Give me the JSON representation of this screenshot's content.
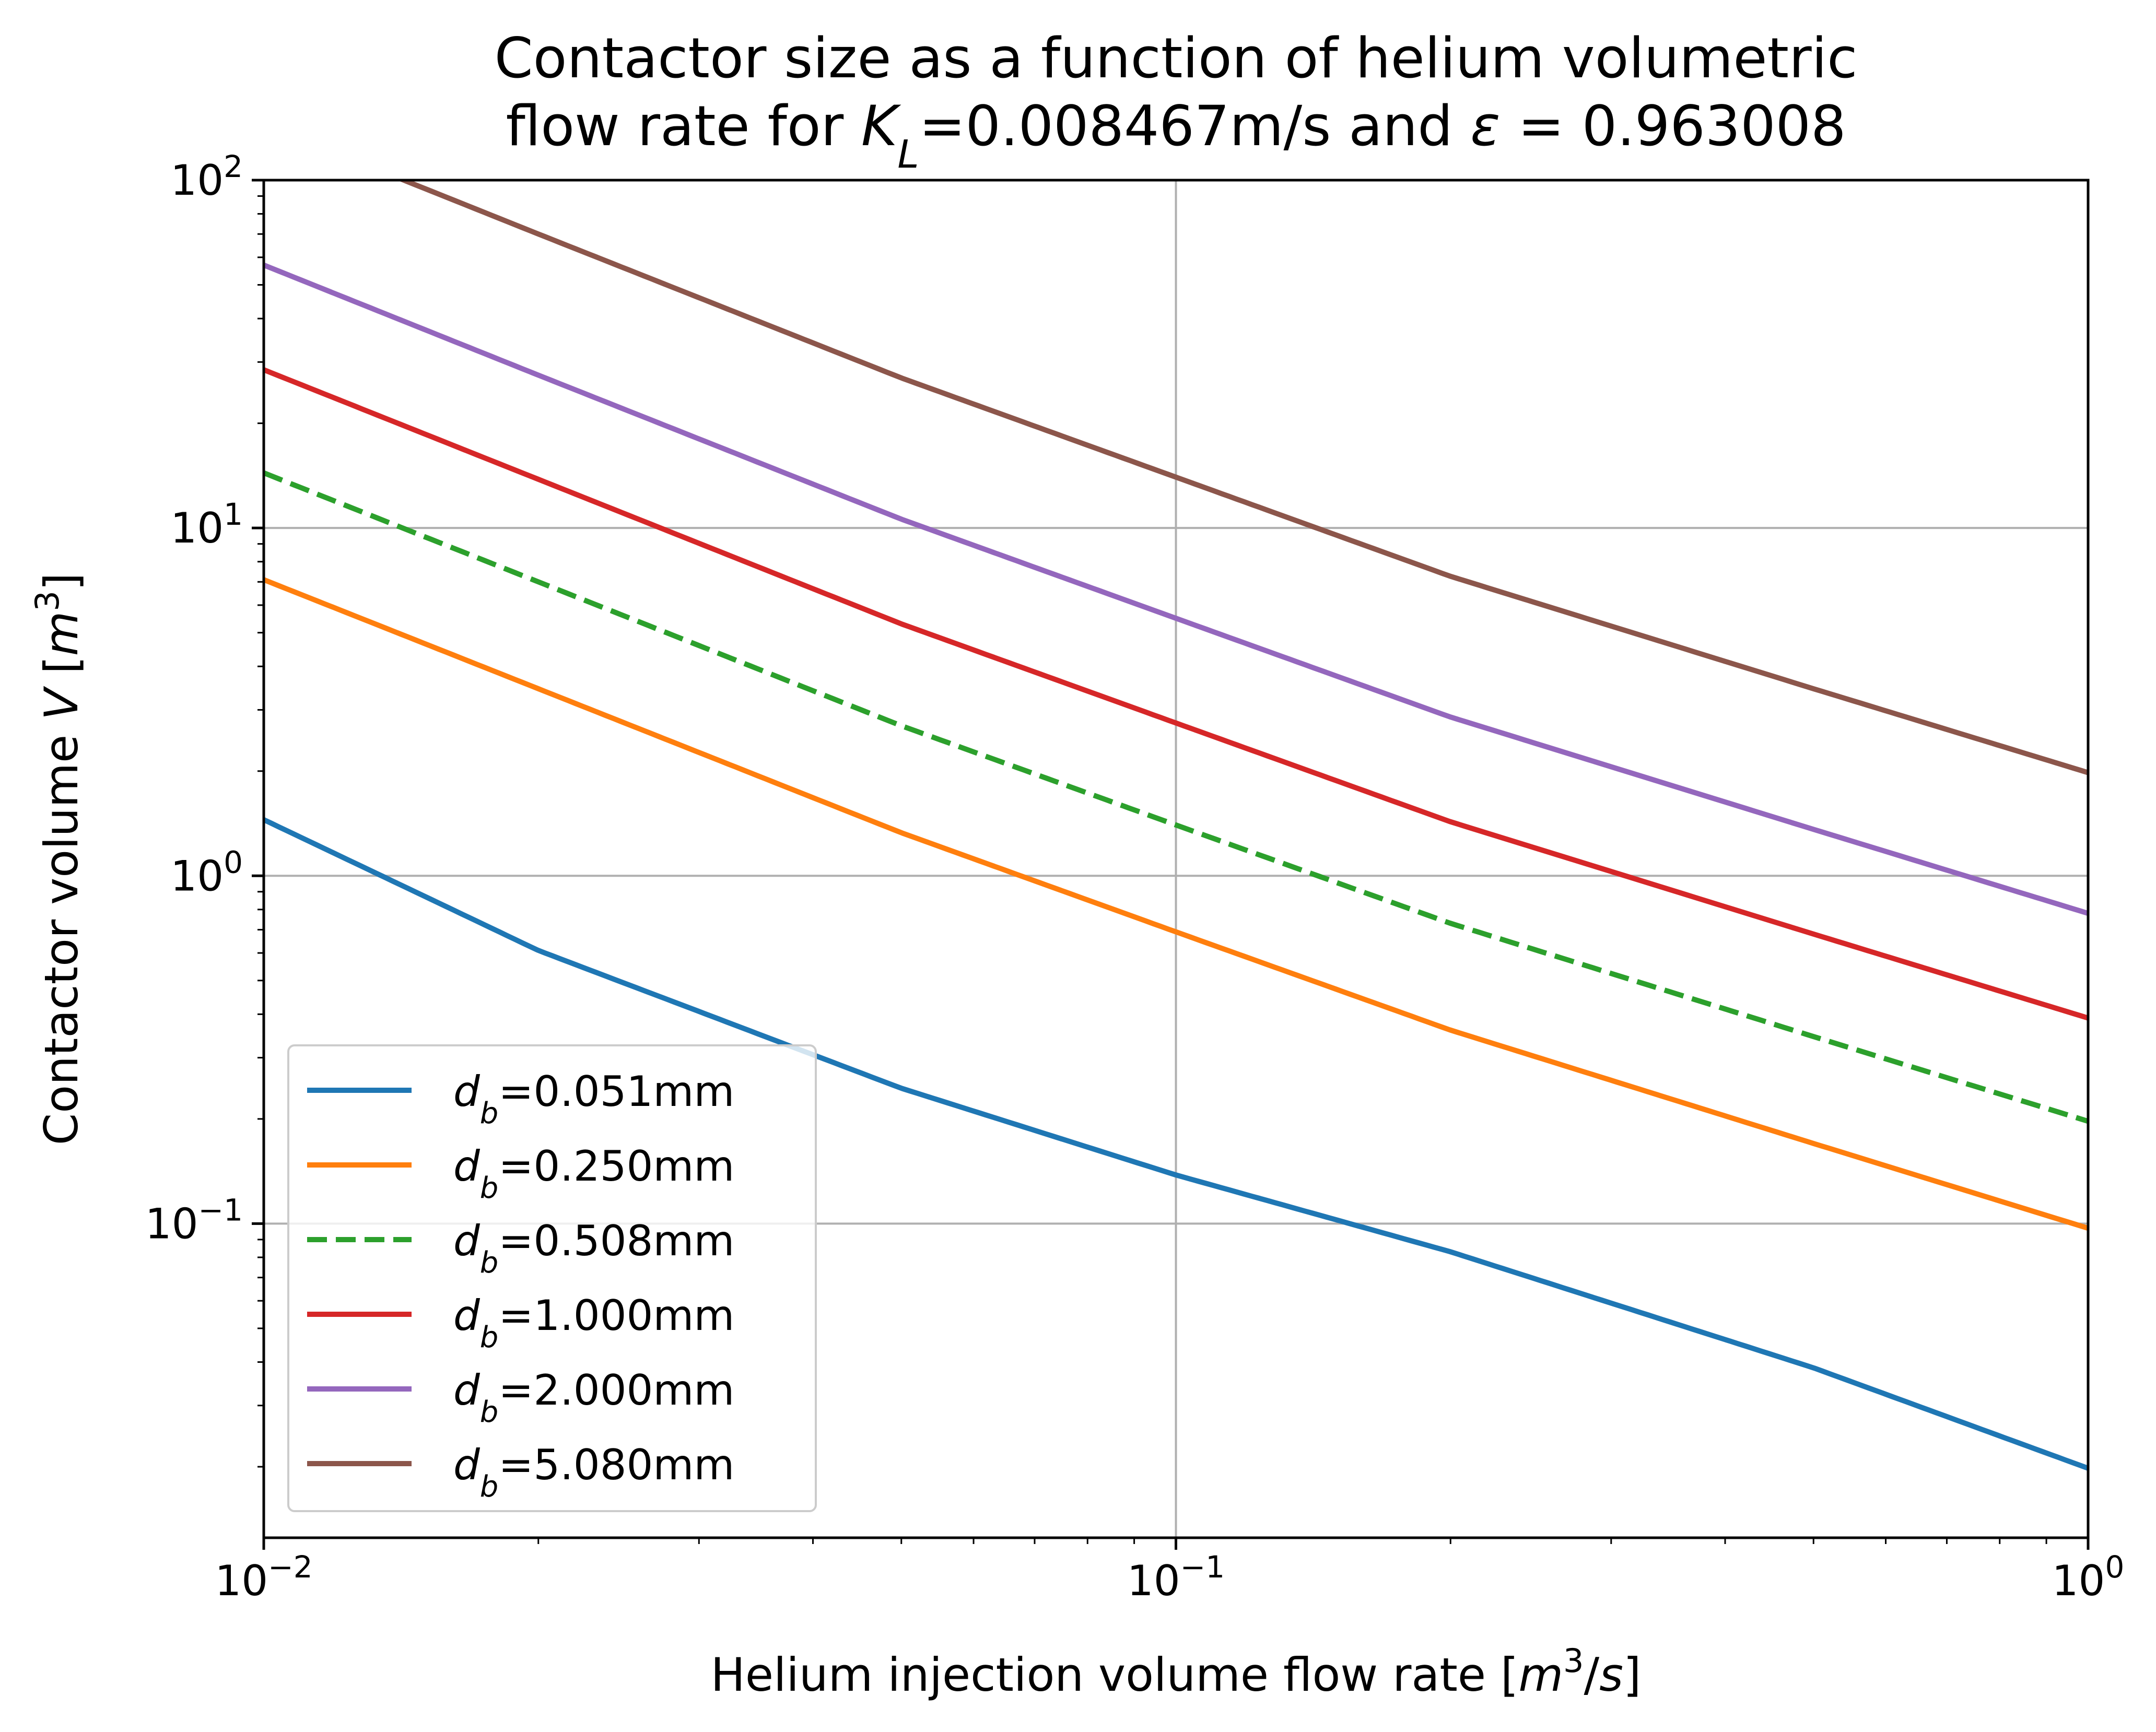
{
  "chart_data": {
    "type": "line",
    "title_lines": [
      [
        {
          "text": "Contactor size as a function of helium volumetric"
        }
      ],
      [
        {
          "text": "flow rate for "
        },
        {
          "text": "K",
          "style": "italic"
        },
        {
          "text": "L",
          "style": "italic-sub"
        },
        {
          "text": "=0.008467m/s and "
        },
        {
          "text": "ε",
          "style": "italic"
        },
        {
          "text": " = 0.963008"
        }
      ]
    ],
    "xlabel": [
      {
        "text": "Helium injection volume flow rate ["
      },
      {
        "text": "m",
        "style": "italic"
      },
      {
        "text": "3",
        "style": "sup"
      },
      {
        "text": "/"
      },
      {
        "text": "s",
        "style": "italic"
      },
      {
        "text": "]"
      }
    ],
    "ylabel": [
      {
        "text": "Contactor volume "
      },
      {
        "text": "V",
        "style": "italic"
      },
      {
        "text": " ["
      },
      {
        "text": "m",
        "style": "italic"
      },
      {
        "text": "3",
        "style": "sup"
      },
      {
        "text": "]"
      }
    ],
    "x_scale": "log",
    "y_scale": "log",
    "xlim": [
      0.01,
      1
    ],
    "ylim": [
      0.0125,
      100
    ],
    "x_ticks": [
      {
        "value": 0.01,
        "base": "10",
        "exp": "−2"
      },
      {
        "value": 0.1,
        "base": "10",
        "exp": "−1"
      },
      {
        "value": 1,
        "base": "10",
        "exp": "0"
      }
    ],
    "y_ticks": [
      {
        "value": 0.1,
        "base": "10",
        "exp": "−1"
      },
      {
        "value": 1,
        "base": "10",
        "exp": "0"
      },
      {
        "value": 10,
        "base": "10",
        "exp": "1"
      },
      {
        "value": 100,
        "base": "10",
        "exp": "2"
      }
    ],
    "grid": "major",
    "legend_position": "lower-left",
    "x": [
      0.01,
      0.02,
      0.05,
      0.1,
      0.2,
      0.5,
      1
    ],
    "series": [
      {
        "label_sub": "b",
        "label_value": "=0.051mm",
        "color": "#1f77b4",
        "dash": "solid",
        "values": [
          1.45,
          0.61,
          0.245,
          0.138,
          0.083,
          0.0385,
          0.0198
        ]
      },
      {
        "label_sub": "b",
        "label_value": "=0.250mm",
        "color": "#ff7f0e",
        "dash": "solid",
        "values": [
          7.1,
          3.45,
          1.33,
          0.69,
          0.36,
          0.17,
          0.097
        ]
      },
      {
        "label_sub": "b",
        "label_value": "=0.508mm",
        "color": "#2ca02c",
        "dash": "dashed",
        "values": [
          14.4,
          7.0,
          2.7,
          1.4,
          0.73,
          0.345,
          0.197
        ]
      },
      {
        "label_sub": "b",
        "label_value": "=1.000mm",
        "color": "#d62728",
        "dash": "solid",
        "values": [
          28.5,
          13.8,
          5.3,
          2.75,
          1.43,
          0.68,
          0.39
        ]
      },
      {
        "label_sub": "b",
        "label_value": "=2.000mm",
        "color": "#9467bd",
        "dash": "solid",
        "values": [
          57,
          27.5,
          10.6,
          5.5,
          2.86,
          1.36,
          0.78
        ]
      },
      {
        "label_sub": "b",
        "label_value": "=5.080mm",
        "color": "#8c564b",
        "dash": "solid",
        "values": [
          145,
          70,
          27,
          14,
          7.26,
          3.45,
          1.98
        ]
      }
    ]
  }
}
